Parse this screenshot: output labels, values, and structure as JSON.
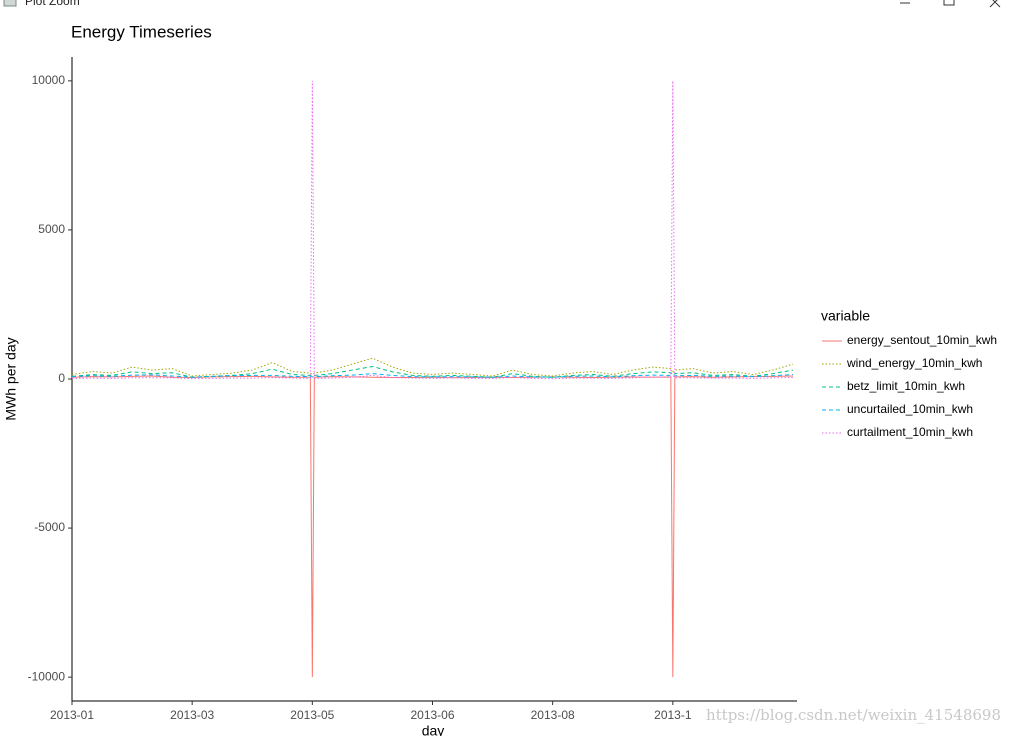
{
  "window_title": "Plot Zoom",
  "watermark": "https://blog.csdn.net/weixin_41548698",
  "chart_data": {
    "type": "line",
    "title": "Energy Timeseries",
    "x_label": "day",
    "y_label": "MWh per day",
    "legend_title": "variable",
    "legend": "right",
    "grid": false,
    "x": [
      0,
      10,
      20,
      30,
      40,
      50,
      60,
      70,
      80,
      90,
      100,
      110,
      119,
      120,
      121,
      130,
      140,
      150,
      160,
      170,
      180,
      190,
      200,
      210,
      220,
      230,
      240,
      250,
      260,
      270,
      280,
      290,
      299,
      300,
      301,
      310,
      320,
      330,
      340,
      350,
      360
    ],
    "xlim": [
      0,
      362
    ],
    "xticks": [
      {
        "value": 0,
        "label": "2013-01"
      },
      {
        "value": 60,
        "label": "2013-03"
      },
      {
        "value": 120,
        "label": "2013-05"
      },
      {
        "value": 180,
        "label": "2013-06"
      },
      {
        "value": 240,
        "label": "2013-08"
      },
      {
        "value": 300,
        "label": "2013-1"
      }
    ],
    "ylim": [
      -10800,
      10800
    ],
    "yticks": [
      -10000,
      -5000,
      0,
      5000,
      10000
    ],
    "series": [
      {
        "name": "energy_sentout_10min_kwh",
        "color": "#F8766D",
        "linetype": "solid",
        "values": [
          60,
          80,
          70,
          90,
          100,
          60,
          50,
          70,
          80,
          90,
          70,
          60,
          60,
          -10000,
          60,
          80,
          70,
          60,
          50,
          50,
          60,
          40,
          50,
          60,
          50,
          60,
          70,
          60,
          50,
          60,
          70,
          60,
          70,
          -10000,
          70,
          80,
          60,
          70,
          80,
          90,
          100
        ]
      },
      {
        "name": "wind_energy_10min_kwh",
        "color": "#A3A500",
        "linetype": "dotted",
        "values": [
          150,
          250,
          200,
          400,
          300,
          350,
          100,
          150,
          200,
          300,
          550,
          250,
          200,
          150,
          200,
          300,
          500,
          700,
          400,
          200,
          150,
          200,
          150,
          100,
          300,
          150,
          100,
          200,
          250,
          150,
          300,
          400,
          350,
          200,
          300,
          350,
          200,
          250,
          150,
          300,
          500
        ]
      },
      {
        "name": "betz_limit_10min_kwh",
        "color": "#00BF7D",
        "linetype": "dashed",
        "values": [
          90,
          150,
          120,
          240,
          180,
          210,
          60,
          90,
          120,
          180,
          330,
          150,
          120,
          90,
          120,
          180,
          300,
          420,
          240,
          120,
          90,
          120,
          90,
          60,
          180,
          90,
          60,
          120,
          150,
          90,
          180,
          240,
          210,
          120,
          180,
          210,
          120,
          150,
          90,
          180,
          300
        ]
      },
      {
        "name": "uncurtailed_10min_kwh",
        "color": "#00B0F6",
        "linetype": "dashed",
        "values": [
          80,
          110,
          90,
          130,
          140,
          100,
          60,
          90,
          110,
          120,
          120,
          90,
          80,
          70,
          80,
          110,
          130,
          180,
          120,
          80,
          70,
          80,
          70,
          60,
          100,
          70,
          60,
          90,
          100,
          70,
          110,
          130,
          120,
          90,
          110,
          120,
          90,
          100,
          80,
          110,
          150
        ]
      },
      {
        "name": "curtailment_10min_kwh",
        "color": "#E76BF3",
        "linetype": "dotted",
        "values": [
          20,
          30,
          20,
          40,
          40,
          40,
          10,
          20,
          30,
          30,
          50,
          30,
          20,
          10000,
          20,
          30,
          60,
          120,
          50,
          30,
          20,
          40,
          20,
          20,
          50,
          20,
          10,
          30,
          30,
          20,
          40,
          70,
          50,
          10000,
          40,
          40,
          30,
          30,
          20,
          40,
          50
        ]
      }
    ]
  }
}
